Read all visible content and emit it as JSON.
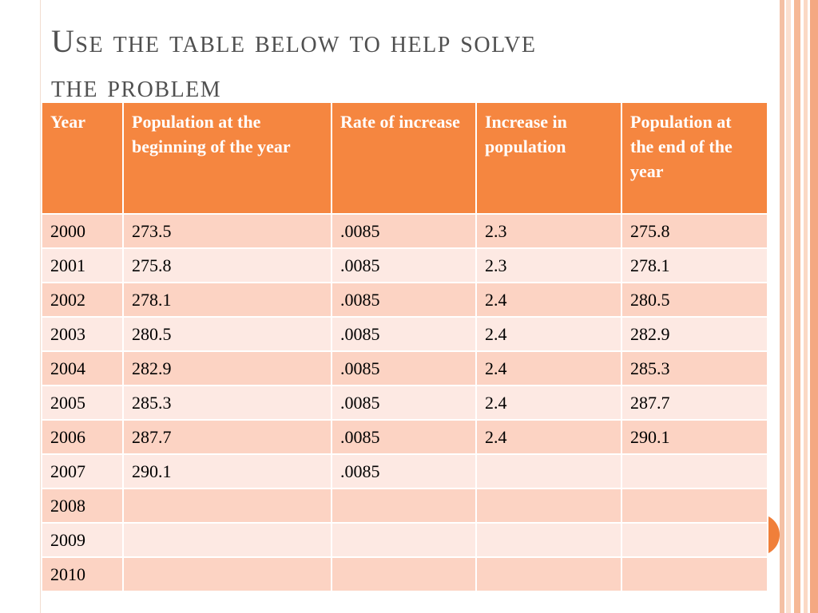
{
  "slide": {
    "title_line1": "Use the table below to help solve",
    "title_line2": "the problem"
  },
  "colors": {
    "header_bg": "#f58640",
    "row_odd": "#fcd3c3",
    "row_even": "#fde9e3",
    "accent": "#f07f3a"
  },
  "table": {
    "headers": [
      "Year",
      "Population at the beginning of the year",
      "Rate of increase",
      "Increase in population",
      "Population at the end of the year"
    ],
    "rows": [
      [
        "2000",
        "273.5",
        ".0085",
        "2.3",
        "275.8"
      ],
      [
        "2001",
        "275.8",
        ".0085",
        "2.3",
        "278.1"
      ],
      [
        "2002",
        "278.1",
        ".0085",
        "2.4",
        "280.5"
      ],
      [
        "2003",
        "280.5",
        ".0085",
        "2.4",
        "282.9"
      ],
      [
        "2004",
        "282.9",
        ".0085",
        "2.4",
        "285.3"
      ],
      [
        "2005",
        "285.3",
        ".0085",
        "2.4",
        "287.7"
      ],
      [
        "2006",
        "287.7",
        ".0085",
        "2.4",
        "290.1"
      ],
      [
        "2007",
        "290.1",
        ".0085",
        "",
        ""
      ],
      [
        "2008",
        "",
        "",
        "",
        ""
      ],
      [
        "2009",
        "",
        "",
        "",
        ""
      ],
      [
        "2010",
        "",
        "",
        "",
        ""
      ]
    ]
  }
}
